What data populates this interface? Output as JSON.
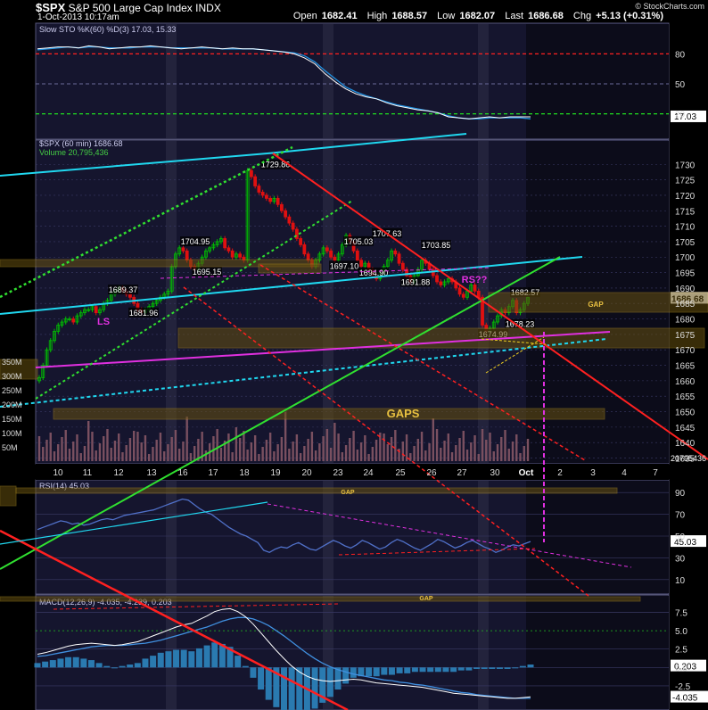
{
  "header": {
    "symbol": "$SPX",
    "name": "S&P 500 Large Cap Index",
    "exchange": "INDX",
    "datetime": "1-Oct-2013 10:17am",
    "open_label": "Open",
    "open": "1682.41",
    "high_label": "High",
    "high": "1688.57",
    "low_label": "Low",
    "low": "1682.07",
    "last_label": "Last",
    "last": "1686.68",
    "chg_label": "Chg",
    "chg": "+5.13 (+0.31%)",
    "brand": "© StockCharts.com"
  },
  "colors": {
    "background": "#000000",
    "panel": "#15152e",
    "weekend_shade": "#23233c",
    "grid": "#3a3a66",
    "up_candle": "#00c000",
    "down_candle": "#e01010",
    "volume": "#7a5060",
    "stoch_line": "#ffffff",
    "stoch_signal": "#2090e0",
    "rsi_line": "#5070c8",
    "macd_line": "#ffffff",
    "macd_signal": "#4090e0",
    "histogram": "#2a7ab0",
    "cyan_trend": "#20d8f0",
    "magenta_trend": "#e030e0",
    "green_trend": "#30e030",
    "red_trend": "#ff2020",
    "gap_box": "#665010"
  },
  "chart_data": [
    {
      "type": "line",
      "title": "Slow STO %K(60) %D(3)",
      "legend": [
        "Slow STO %K(60) %D(3) 17.03, 15.33"
      ],
      "yticks": [
        80,
        50,
        20
      ],
      "ylim": [
        0,
        100
      ],
      "reference_lines": [
        80,
        50,
        20
      ],
      "last_value_label": "17.03",
      "series": [
        {
          "name": "%K",
          "values": [
            85,
            86,
            87,
            87,
            86,
            88,
            87,
            85,
            86,
            87,
            87,
            88,
            87,
            86,
            85,
            86,
            87,
            86,
            85,
            86,
            85,
            85,
            84,
            83,
            82,
            80,
            76,
            70,
            60,
            52,
            45,
            40,
            37,
            35,
            31,
            28,
            26,
            24,
            23,
            21,
            17,
            16,
            15,
            16,
            17,
            16,
            17,
            17,
            17
          ]
        },
        {
          "name": "%D",
          "values": [
            84,
            85,
            86,
            87,
            86,
            87,
            87,
            86,
            86,
            86,
            87,
            87,
            87,
            86,
            86,
            86,
            86,
            86,
            85,
            85,
            85,
            85,
            84,
            83,
            82,
            81,
            78,
            72,
            63,
            55,
            47,
            42,
            38,
            35,
            32,
            29,
            27,
            25,
            23,
            21,
            18,
            16,
            15,
            15,
            16,
            16,
            16,
            16,
            15
          ]
        }
      ]
    },
    {
      "type": "candlestick",
      "title": "$SPX (60 min) 1686.68",
      "legend": [
        "$SPX (60 min) 1686.68",
        "Volume 20,795,436"
      ],
      "x_tick_labels": [
        "10",
        "11",
        "12",
        "13",
        "16",
        "17",
        "18",
        "19",
        "20",
        "23",
        "24",
        "25",
        "26",
        "27",
        "30",
        "Oct",
        "2",
        "3",
        "4",
        "7"
      ],
      "yticks": [
        1635,
        1640,
        1645,
        1650,
        1655,
        1660,
        1665,
        1670,
        1675,
        1680,
        1685,
        1690,
        1695,
        1700,
        1705,
        1710,
        1715,
        1720,
        1725,
        1730
      ],
      "ylim": [
        1634,
        1737
      ],
      "volume_ticks": [
        "350M",
        "300M",
        "250M",
        "200M",
        "150M",
        "100M",
        "50M"
      ],
      "last_price_label": "1686.68",
      "last_volume_label": "20795436",
      "price_annotations": [
        "1729.86",
        "1704.95",
        "1695.15",
        "1689.37",
        "1681.96",
        "1705.03",
        "1707.63",
        "1703.85",
        "1697.10",
        "1694.90",
        "1691.88",
        "1682.57",
        "1678.23",
        "1674.99"
      ],
      "text_annotations": [
        "LS",
        "RS??",
        "GAPS",
        "GAP"
      ],
      "closes": [
        1661,
        1665,
        1670,
        1673,
        1676,
        1678,
        1679,
        1680,
        1680,
        1679,
        1681,
        1682,
        1683,
        1683,
        1684,
        1682,
        1683,
        1685,
        1686,
        1688,
        1689,
        1690,
        1689,
        1688,
        1687,
        1685,
        1683,
        1682,
        1683,
        1684,
        1685,
        1686,
        1687,
        1688,
        1689,
        1697,
        1701,
        1703,
        1702,
        1699,
        1697,
        1696,
        1698,
        1700,
        1702,
        1703,
        1704,
        1705,
        1706,
        1703,
        1702,
        1700,
        1701,
        1700,
        1699,
        1728,
        1726,
        1723,
        1721,
        1720,
        1719,
        1718,
        1719,
        1717,
        1715,
        1713,
        1711,
        1709,
        1706,
        1704,
        1701,
        1699,
        1697,
        1699,
        1701,
        1703,
        1702,
        1700,
        1699,
        1701,
        1704,
        1707,
        1705,
        1702,
        1699,
        1697,
        1698,
        1696,
        1694,
        1693,
        1695,
        1697,
        1699,
        1702,
        1701,
        1698,
        1696,
        1694,
        1692,
        1694,
        1696,
        1699,
        1698,
        1696,
        1694,
        1692,
        1691,
        1692,
        1693,
        1692,
        1690,
        1688,
        1687,
        1689,
        1691,
        1689,
        1687,
        1678,
        1676,
        1677,
        1679,
        1681,
        1683,
        1682,
        1684,
        1686,
        1682,
        1683,
        1685,
        1687
      ]
    },
    {
      "type": "line",
      "title": "RSI(14)",
      "legend": [
        "RSI(14) 45.03"
      ],
      "yticks": [
        90,
        70,
        50,
        30,
        10
      ],
      "ylim": [
        0,
        100
      ],
      "last_value_label": "45.03",
      "series": [
        {
          "name": "RSI(14)",
          "values": [
            56,
            58,
            60,
            62,
            64,
            63,
            61,
            62,
            60,
            61,
            63,
            65,
            66,
            65,
            67,
            69,
            70,
            71,
            72,
            73,
            74,
            76,
            78,
            80,
            82,
            84,
            83,
            79,
            75,
            72,
            70,
            66,
            62,
            58,
            55,
            52,
            50,
            47,
            44,
            37,
            35,
            38,
            40,
            39,
            42,
            44,
            41,
            38,
            37,
            40,
            43,
            46,
            44,
            41,
            39,
            42,
            46,
            44,
            41,
            38,
            40,
            44,
            47,
            45,
            42,
            39,
            37,
            40,
            43,
            47,
            45,
            42,
            39,
            41,
            44,
            46,
            43,
            40,
            38,
            35,
            37,
            40,
            42,
            41,
            43,
            45
          ]
        }
      ]
    },
    {
      "type": "bar",
      "title": "MACD(12,26,9)",
      "legend": [
        "MACD(12,26,9) -4.035, -4.239, 0.203"
      ],
      "yticks": [
        7.5,
        5.0,
        2.5,
        0.0,
        -2.5
      ],
      "ylim": [
        -5.3,
        9.5
      ],
      "last_value_labels": [
        "0.203",
        "-4.035"
      ],
      "series": [
        {
          "name": "MACD",
          "values": [
            1.8,
            2.0,
            2.3,
            2.6,
            2.9,
            3.1,
            3.2,
            3.3,
            3.2,
            3.1,
            3.0,
            3.1,
            3.3,
            3.5,
            3.9,
            4.3,
            4.7,
            5.1,
            5.5,
            5.8,
            6.0,
            6.5,
            7.0,
            7.6,
            7.9,
            8.0,
            7.6,
            6.9,
            5.9,
            4.7,
            3.5,
            2.3,
            1.2,
            0.2,
            -0.6,
            -1.2,
            -1.6,
            -1.8,
            -1.9,
            -1.8,
            -1.7,
            -1.6,
            -1.7,
            -1.9,
            -2.1,
            -2.2,
            -2.3,
            -2.4,
            -2.5,
            -2.6,
            -2.7,
            -2.9,
            -3.1,
            -3.3,
            -3.5,
            -3.6,
            -3.7,
            -3.8,
            -3.9,
            -4.0,
            -4.1,
            -4.2,
            -4.2,
            -4.1,
            -4.0
          ]
        },
        {
          "name": "Signal",
          "values": [
            1.5,
            1.6,
            1.8,
            2.0,
            2.2,
            2.4,
            2.6,
            2.8,
            2.9,
            3.0,
            3.0,
            3.0,
            3.1,
            3.2,
            3.3,
            3.5,
            3.7,
            4.0,
            4.3,
            4.6,
            4.9,
            5.2,
            5.5,
            5.9,
            6.3,
            6.6,
            6.8,
            6.8,
            6.6,
            6.2,
            5.7,
            5.0,
            4.3,
            3.5,
            2.7,
            1.9,
            1.2,
            0.6,
            0.1,
            -0.3,
            -0.6,
            -0.9,
            -1.1,
            -1.3,
            -1.5,
            -1.7,
            -1.8,
            -2.0,
            -2.1,
            -2.3,
            -2.4,
            -2.6,
            -2.8,
            -3.0,
            -3.2,
            -3.4,
            -3.5,
            -3.7,
            -3.8,
            -3.9,
            -4.0,
            -4.1,
            -4.2,
            -4.2,
            -4.2
          ]
        },
        {
          "name": "Histogram",
          "values": [
            0.3,
            0.4,
            0.5,
            0.6,
            0.7,
            0.7,
            0.6,
            0.5,
            0.3,
            0.1,
            0.0,
            0.1,
            0.2,
            0.3,
            0.6,
            0.8,
            1.0,
            1.1,
            1.2,
            1.2,
            1.1,
            1.3,
            1.5,
            1.7,
            1.6,
            1.4,
            0.8,
            0.1,
            -0.7,
            -1.5,
            -2.2,
            -2.7,
            -3.1,
            -3.3,
            -3.3,
            -3.1,
            -2.8,
            -2.4,
            -2.0,
            -1.5,
            -1.1,
            -0.7,
            -0.6,
            -0.6,
            -0.6,
            -0.5,
            -0.5,
            -0.4,
            -0.4,
            -0.3,
            -0.3,
            -0.3,
            -0.3,
            -0.3,
            -0.3,
            -0.2,
            -0.2,
            -0.1,
            -0.1,
            -0.1,
            -0.1,
            -0.1,
            0.0,
            0.1,
            0.2
          ]
        }
      ]
    }
  ]
}
